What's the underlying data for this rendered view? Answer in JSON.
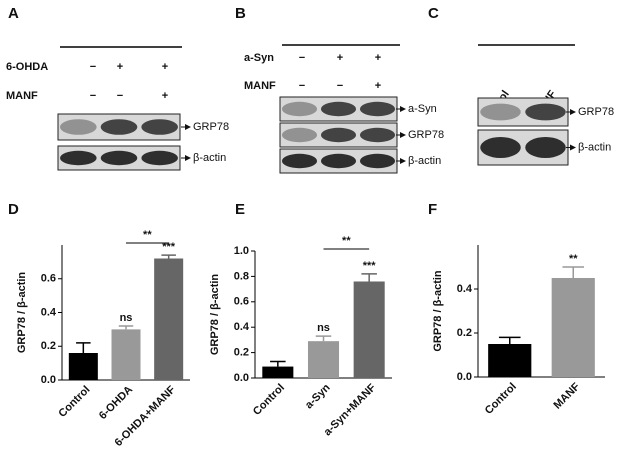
{
  "blots": [
    {
      "letter": "A",
      "conditions": [
        {
          "name": "6-OHDA",
          "signs": [
            "−",
            "+",
            "+"
          ]
        },
        {
          "name": "MANF",
          "signs": [
            "−",
            "−",
            "+"
          ]
        }
      ],
      "bands": [
        "GRP78",
        "β-actin"
      ]
    },
    {
      "letter": "B",
      "conditions": [
        {
          "name": "a-Syn",
          "signs": [
            "−",
            "+",
            "+"
          ]
        },
        {
          "name": "MANF",
          "signs": [
            "−",
            "−",
            "+"
          ]
        }
      ],
      "bands": [
        "a-Syn",
        "GRP78",
        "β-actin"
      ]
    },
    {
      "letter": "C",
      "lanes": [
        "Control",
        "MANF"
      ],
      "bands": [
        "GRP78",
        "β-actin"
      ]
    }
  ],
  "chart_data": [
    {
      "type": "bar",
      "panel": "D",
      "y_label": "GRP78 / β-actin",
      "categories": [
        "Control",
        "6-OHDA",
        "6-OHDA+MANF"
      ],
      "values": [
        0.16,
        0.3,
        0.72
      ],
      "errors": [
        0.06,
        0.02,
        0.02
      ],
      "colors": [
        "#000000",
        "#999999",
        "#666666"
      ],
      "bar_labels": [
        null,
        "ns",
        "***"
      ],
      "bracket_label": "**",
      "ylim": [
        0,
        0.8
      ],
      "yticks": [
        {
          "value": 0,
          "label": "0.0"
        },
        0.2,
        0.4,
        0.6
      ]
    },
    {
      "type": "bar",
      "panel": "E",
      "y_label": "GRP78 / β-actin",
      "categories": [
        "Control",
        "a-Syn",
        "a-Syn+MANF"
      ],
      "values": [
        0.09,
        0.29,
        0.76
      ],
      "errors": [
        0.04,
        0.04,
        0.06
      ],
      "colors": [
        "#000000",
        "#999999",
        "#666666"
      ],
      "bar_labels": [
        null,
        "ns",
        "***"
      ],
      "bracket_label": "**",
      "ylim": [
        0,
        1.0
      ],
      "yticks": [
        {
          "value": 0,
          "label": "0.0"
        },
        0.2,
        0.4,
        0.6,
        0.8,
        {
          "value": 1.0,
          "label": "1.0"
        }
      ]
    },
    {
      "type": "bar",
      "panel": "F",
      "y_label": "GRP78 / β-actin",
      "categories": [
        "Control",
        "MANF"
      ],
      "values": [
        0.15,
        0.45
      ],
      "errors": [
        0.03,
        0.05
      ],
      "colors": [
        "#000000",
        "#999999"
      ],
      "bar_labels": [
        null,
        "**"
      ],
      "ylim": [
        0,
        0.6
      ],
      "yticks": [
        {
          "value": 0,
          "label": "0.0"
        },
        0.2,
        0.4
      ]
    }
  ]
}
